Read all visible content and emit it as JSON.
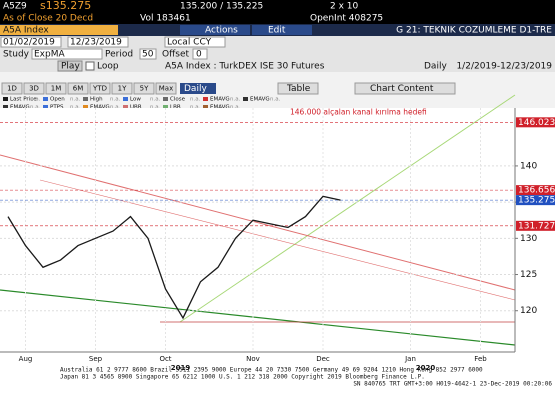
{
  "header": {
    "ticker": "A5Z9",
    "last": "s135.275",
    "bid_ask": "135.200 / 135.225",
    "size": "2 x 10",
    "as_of": "As of Close 20 Decd",
    "volume": "Vol 183461",
    "open_interest": "OpenInt 408275"
  },
  "toolbar": {
    "security": "A5A Index",
    "actions": "Actions",
    "edit": "Edit",
    "page_title": "G 21: TEKNIK COZUMLEME D1-TRE",
    "start_date": "01/02/2019",
    "end_date": "12/23/2019",
    "currency": "Local CCY",
    "study_label": "Study",
    "study": "ExpMA",
    "period_label": "Period",
    "period": "50",
    "offset_label": "Offset",
    "offset": "0",
    "play": "Play",
    "loop": "Loop",
    "description": "A5A Index : TurkDEX ISE 30 Futures",
    "frequency": "Daily",
    "range": "1/2/2019-12/23/2019"
  },
  "range_buttons": [
    "1D",
    "3D",
    "1M",
    "6M",
    "YTD",
    "1Y",
    "5Y",
    "Max"
  ],
  "frequency_select": "Daily",
  "table_button": "Table",
  "chart_content": "Chart Content",
  "chart_data": {
    "type": "line",
    "categories": [
      null,
      "Aug",
      null,
      null,
      null,
      "Sep",
      null,
      null,
      null,
      "Oct",
      null,
      null,
      null,
      null,
      "Nov",
      null,
      null,
      null,
      "Dec",
      null,
      null,
      null,
      null,
      "Jan",
      null,
      null,
      null,
      "Feb",
      null,
      null
    ],
    "year_labels": [
      "2019",
      "2020"
    ],
    "series": [
      {
        "name": "Last Price",
        "legend_value": "n.a.",
        "color": "#1a1a1a",
        "values": [
          133,
          129,
          126,
          127,
          129,
          130,
          131,
          133,
          130,
          123,
          119,
          124,
          126,
          130,
          132.5,
          132,
          131.5,
          133,
          135.8,
          135.275,
          null,
          null,
          null,
          null,
          null,
          null,
          null,
          null,
          null,
          null
        ]
      }
    ],
    "legend": [
      {
        "name": "Open",
        "value": "n.a.",
        "color": "#3c6fd8"
      },
      {
        "name": "High",
        "value": "n.a.",
        "color": "#6a6a6a"
      },
      {
        "name": "Low",
        "value": "n.a.",
        "color": "#3c6fd8"
      },
      {
        "name": "Close",
        "value": "n.a.",
        "color": "#6a6a6a"
      },
      {
        "name": "EMAVG",
        "value": "n.a.",
        "color": "#d03030"
      },
      {
        "name": "EMAVG",
        "value": "n.a.",
        "color": "#303030"
      },
      {
        "name": "EMAVG",
        "value": "n.a.",
        "color": "#303030"
      },
      {
        "name": "PTPS",
        "value": "n.a.",
        "color": "#3c6fd8"
      },
      {
        "name": "EMAVG",
        "value": "n.a.",
        "color": "#e08a20"
      },
      {
        "name": "UBB",
        "value": "n.a.",
        "color": "#d07070"
      },
      {
        "name": "LBB",
        "value": "n.a.",
        "color": "#70b070"
      },
      {
        "name": "EMAVG",
        "value": "n.a.",
        "color": "#a06030"
      }
    ],
    "ylim": [
      114.3,
      148
    ],
    "yticks": [
      120,
      125,
      130,
      135,
      140
    ],
    "price_labels": [
      {
        "value": 146.023,
        "color": "#d0202a"
      },
      {
        "value": 136.656,
        "color": "#d0202a"
      },
      {
        "value": 135.275,
        "color": "#2050c0"
      },
      {
        "value": 131.727,
        "color": "#d0202a"
      }
    ],
    "annotation": "146.000 alçalan kanal kırılma hedefi"
  },
  "footer": [
    "Australia 61 2 9777 8600 Brazil 5511 2395 9000 Europe 44 20 7330 7500 Germany 49 69 9204 1210 Hong Kong 852 2977 6000",
    "Japan 81 3 4565 8900        Singapore 65 6212 1000        U.S. 1 212 318 2000      Copyright 2019 Bloomberg Finance L.P.",
    "SN 840765 TRT  GMT+3:00 H019-4642-1 23-Dec-2019 00:20:06"
  ]
}
